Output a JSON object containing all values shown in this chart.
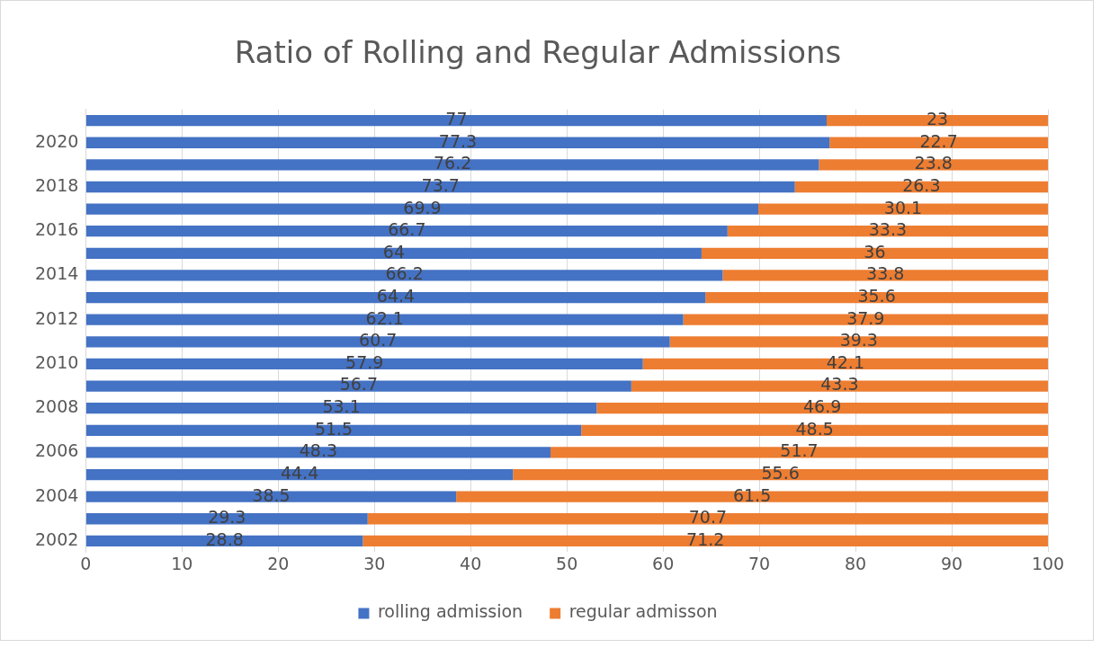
{
  "chart_data": {
    "type": "bar",
    "orientation": "horizontal",
    "stacked": true,
    "title": "Ratio of Rolling and Regular Admissions",
    "categories": [
      null,
      "2020",
      null,
      "2018",
      null,
      "2016",
      null,
      "2014",
      null,
      "2012",
      null,
      "2010",
      null,
      "2008",
      null,
      "2006",
      null,
      "2004",
      null,
      "2002"
    ],
    "series": [
      {
        "name": "rolling admission",
        "color": "#4472c4",
        "values": [
          77,
          77.3,
          76.2,
          73.7,
          69.9,
          66.7,
          64,
          66.2,
          64.4,
          62.1,
          60.7,
          57.9,
          56.7,
          53.1,
          51.5,
          48.3,
          44.4,
          38.5,
          29.3,
          28.8
        ]
      },
      {
        "name": "regular admisson",
        "color": "#ed7d31",
        "values": [
          23,
          22.7,
          23.8,
          26.3,
          30.1,
          33.3,
          36,
          33.8,
          35.6,
          37.9,
          39.3,
          42.1,
          43.3,
          46.9,
          48.5,
          51.7,
          55.6,
          61.5,
          70.7,
          71.2
        ]
      }
    ],
    "xlim": [
      0,
      100
    ],
    "xticks": [
      0,
      10,
      20,
      30,
      40,
      50,
      60,
      70,
      80,
      90,
      100
    ],
    "grid": "x",
    "legend": "bottom",
    "data_labels": true
  }
}
